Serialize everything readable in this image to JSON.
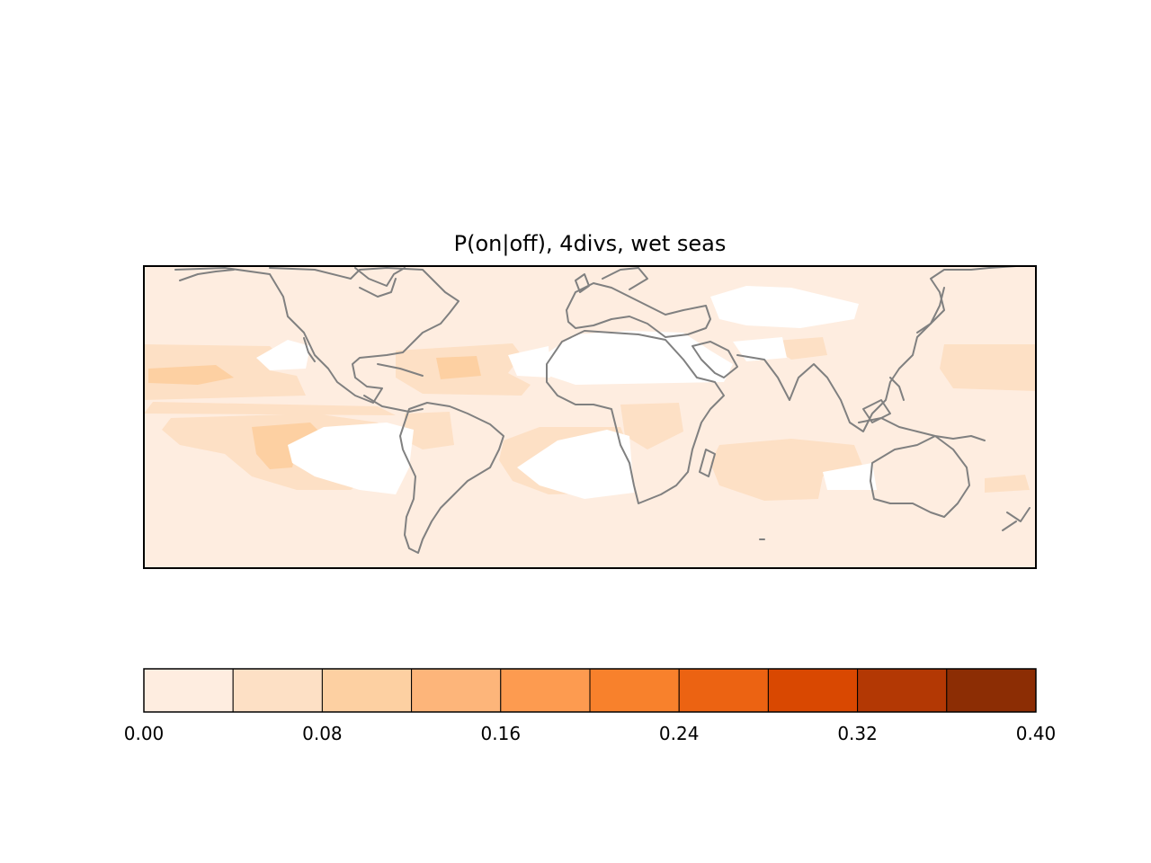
{
  "title": "P(on|off), 4divs, wet seas",
  "colors": {
    "background_level": "#feede0",
    "no_data": "#ffffff",
    "coastline": "#808080",
    "frame": "#000000"
  },
  "colorbar": {
    "levels": [
      0.0,
      0.04,
      0.08,
      0.12,
      0.16,
      0.2,
      0.24,
      0.28,
      0.32,
      0.36,
      0.4
    ],
    "colors": [
      "#feede0",
      "#fde0c5",
      "#fdd0a2",
      "#fdb57a",
      "#fd9b50",
      "#f8812c",
      "#ec6312",
      "#d94801",
      "#b33804",
      "#8c2d04"
    ],
    "tick_labels": [
      "0.00",
      "0.08",
      "0.16",
      "0.24",
      "0.32",
      "0.40"
    ]
  }
}
